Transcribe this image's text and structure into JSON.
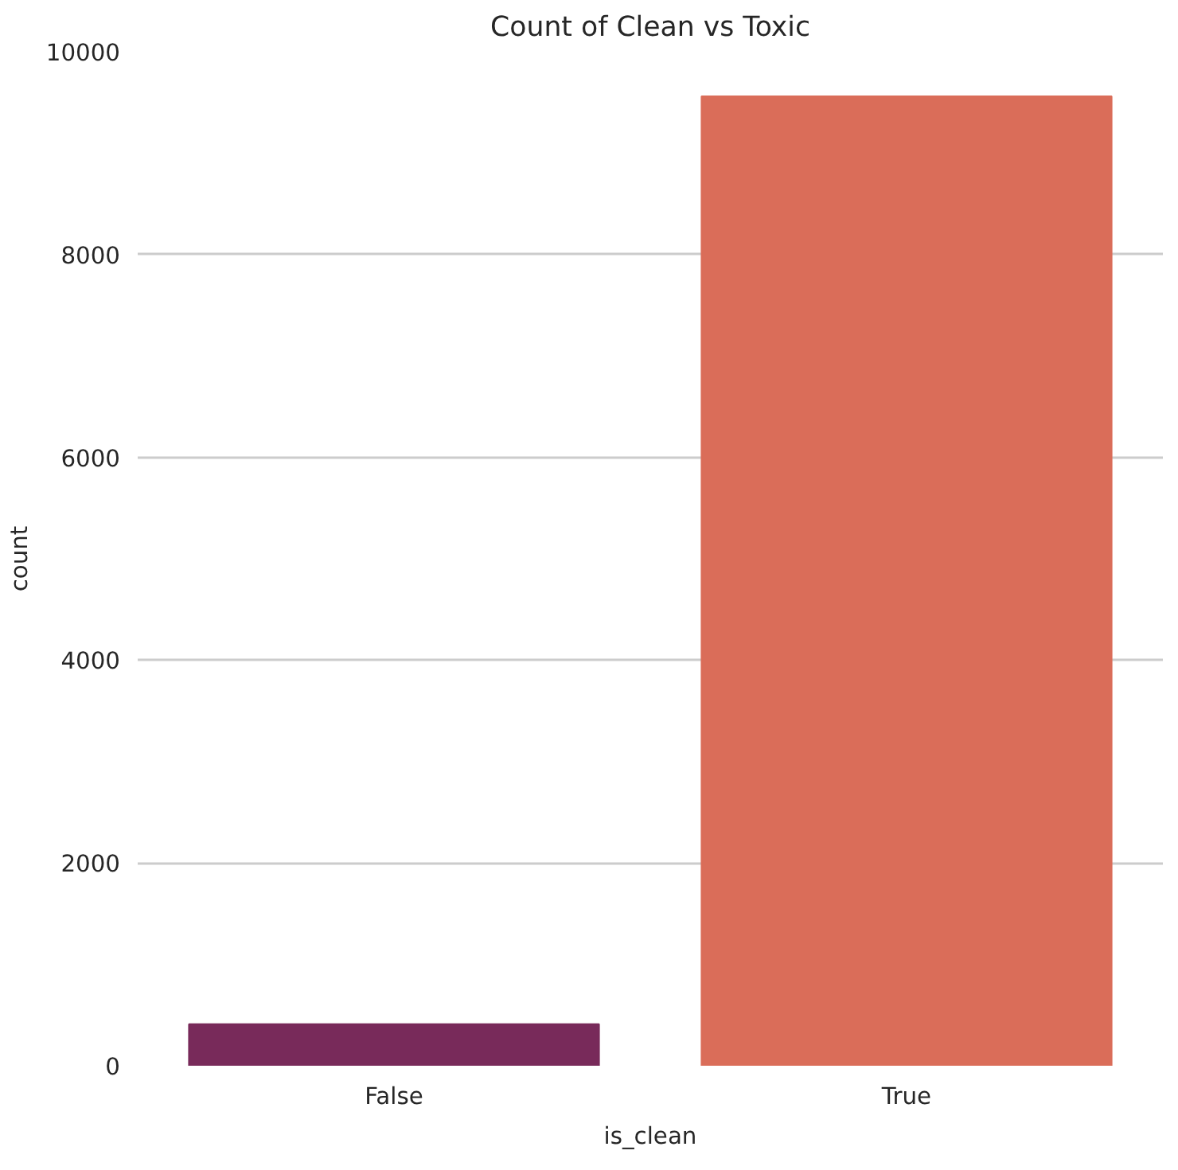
{
  "chart_data": {
    "type": "bar",
    "title": "Count of Clean vs Toxic",
    "xlabel": "is_clean",
    "ylabel": "count",
    "categories": [
      "False",
      "True"
    ],
    "values": [
      410,
      9560
    ],
    "colors": [
      "#782a5a",
      "#da6d59"
    ],
    "ylim": [
      0,
      10000
    ],
    "yticks": [
      0,
      2000,
      4000,
      6000,
      8000,
      10000
    ],
    "grid": "y"
  }
}
